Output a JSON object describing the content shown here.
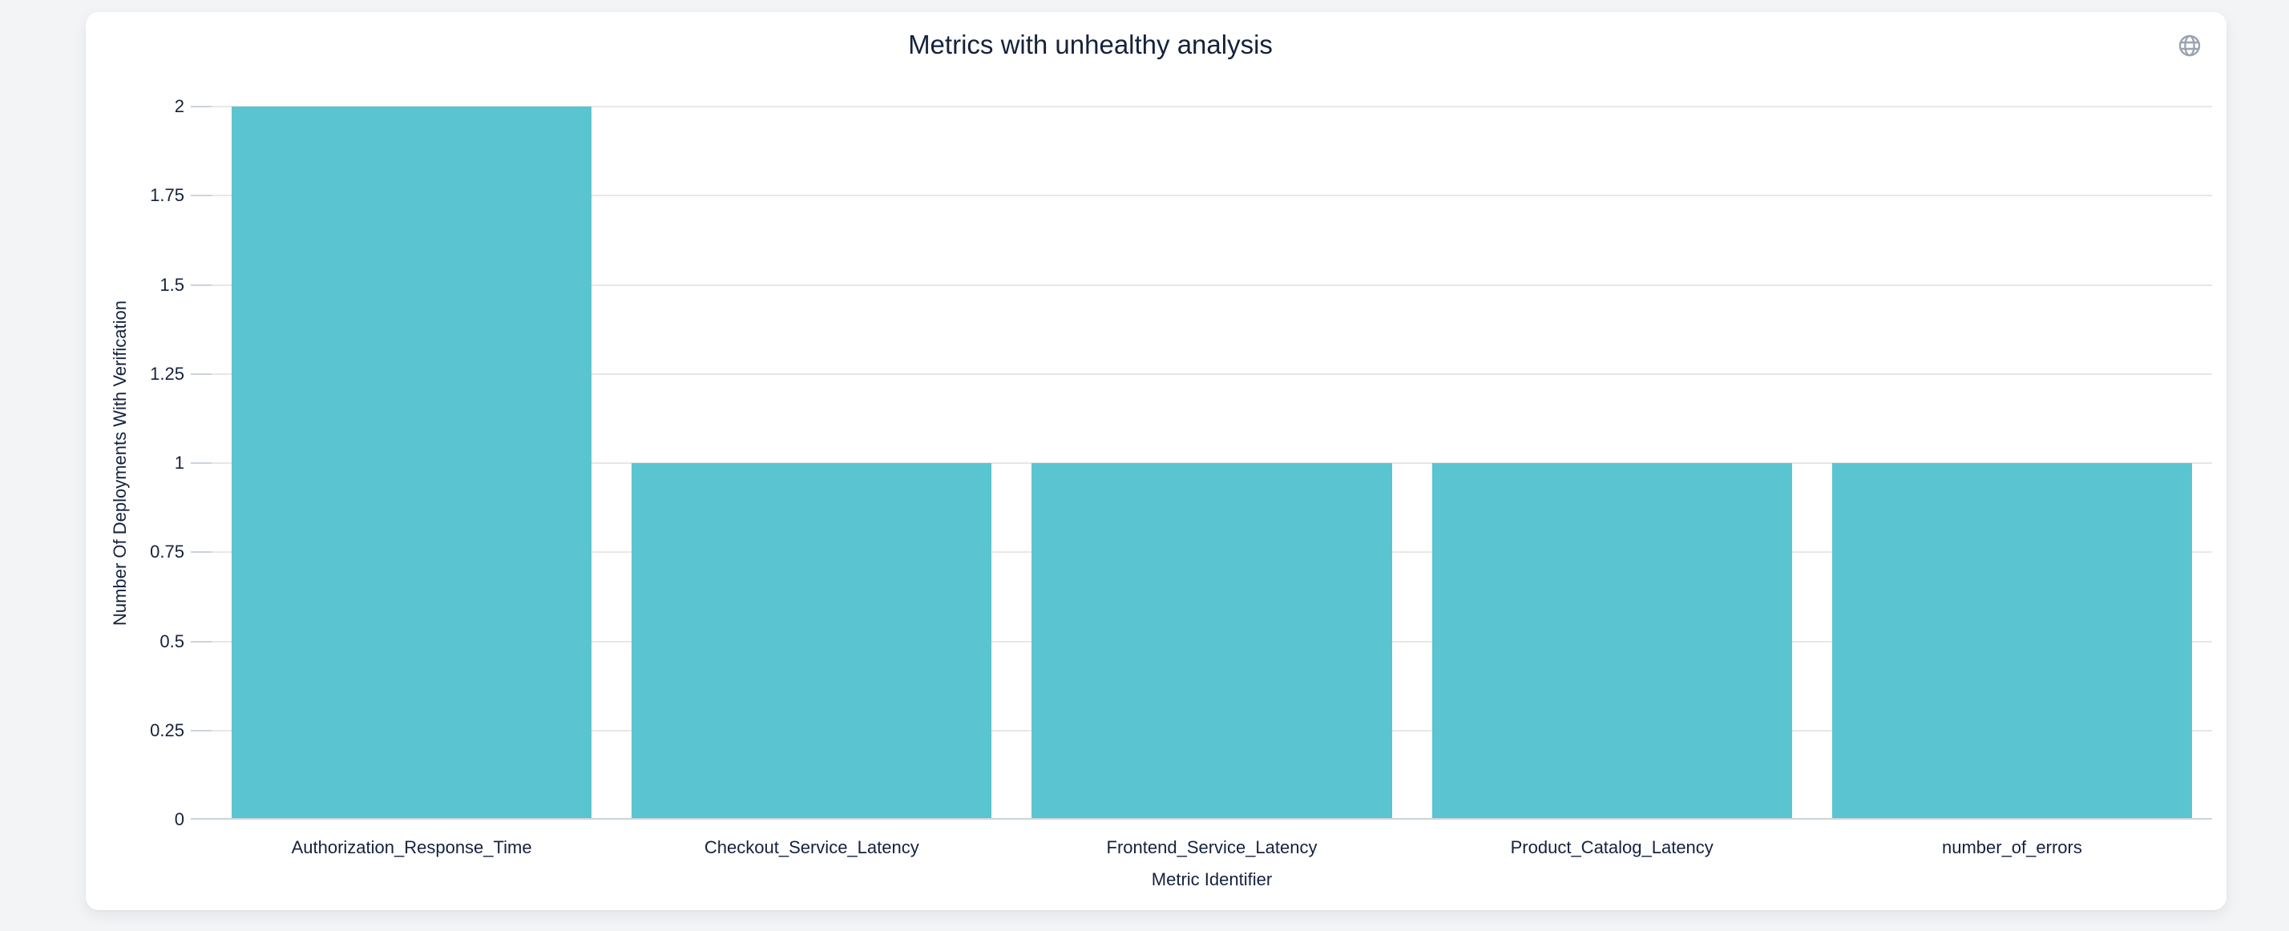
{
  "page": {
    "background_color": "#f2f4f6"
  },
  "card": {
    "background_color": "#ffffff",
    "corner_icon": "globe-icon",
    "corner_icon_color": "#9ba3af"
  },
  "chart_data": {
    "type": "bar",
    "title": "Metrics with unhealthy analysis",
    "categories": [
      "Authorization_Response_Time",
      "Checkout_Service_Latency",
      "Frontend_Service_Latency",
      "Product_Catalog_Latency",
      "number_of_errors"
    ],
    "values": [
      2,
      1,
      1,
      1,
      1
    ],
    "xlabel": "Metric Identifier",
    "ylabel": "Number Of Deployments With Verification",
    "ylim": [
      0,
      2
    ],
    "yticks": [
      0,
      0.25,
      0.5,
      0.75,
      1,
      1.25,
      1.5,
      1.75,
      2
    ],
    "ytick_labels": [
      "0",
      "0.25",
      "0.5",
      "0.75",
      "1",
      "1.25",
      "1.5",
      "1.75",
      "2"
    ],
    "grid": true,
    "legend": false,
    "bar_color": "#5ac4d1",
    "grid_color": "#e7e7e7",
    "axis_line_color": "#ccd3dd",
    "text_color": "#15223c"
  }
}
